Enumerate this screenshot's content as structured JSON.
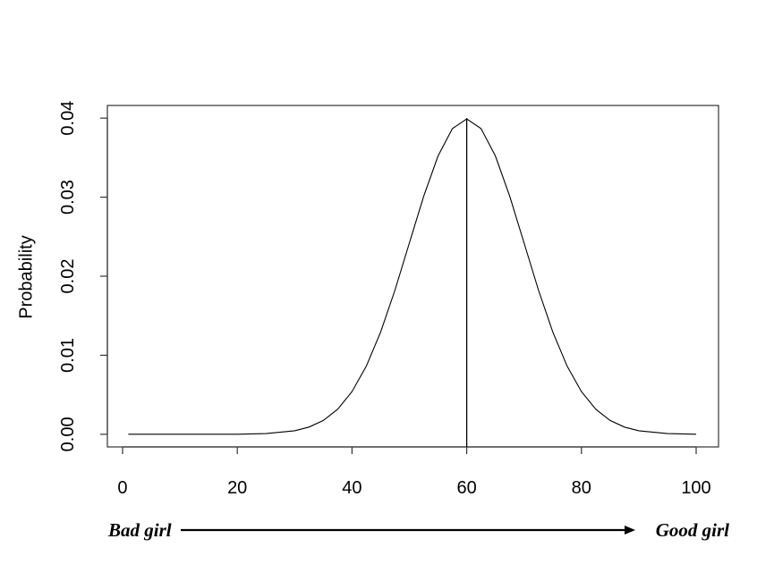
{
  "chart_data": {
    "type": "line",
    "ylabel": "Probability",
    "x": [
      1,
      10,
      20,
      25,
      30,
      32.5,
      35,
      37.5,
      40,
      42.5,
      45,
      47.5,
      50,
      52.5,
      55,
      57.5,
      60,
      62.5,
      65,
      67.5,
      70,
      72.5,
      75,
      77.5,
      80,
      82.5,
      85,
      87.5,
      90,
      95,
      100
    ],
    "values": [
      0,
      0,
      1e-05,
      9e-05,
      0.00044,
      0.00091,
      0.00175,
      0.00317,
      0.0054,
      0.00863,
      0.01295,
      0.01826,
      0.0242,
      0.03011,
      0.03521,
      0.03867,
      0.0399,
      0.03867,
      0.03521,
      0.03011,
      0.0242,
      0.01826,
      0.01295,
      0.00863,
      0.0054,
      0.00317,
      0.00175,
      0.00091,
      0.00044,
      9e-05,
      1e-05
    ],
    "color": "#000000",
    "vline_x": 60,
    "xlim": [
      -2.65,
      103.9
    ],
    "xticks": [
      0,
      20,
      40,
      60,
      80,
      100
    ],
    "ylim": [
      -0.0016,
      0.0416
    ],
    "yticks": [
      {
        "value": 0,
        "label": "0.00"
      },
      {
        "value": 0.01,
        "label": "0.01"
      },
      {
        "value": 0.02,
        "label": "0.02"
      },
      {
        "value": 0.03,
        "label": "0.03"
      },
      {
        "value": 0.04,
        "label": "0.04"
      }
    ],
    "left_annotation": "Bad girl",
    "right_annotation": "Good girl"
  }
}
